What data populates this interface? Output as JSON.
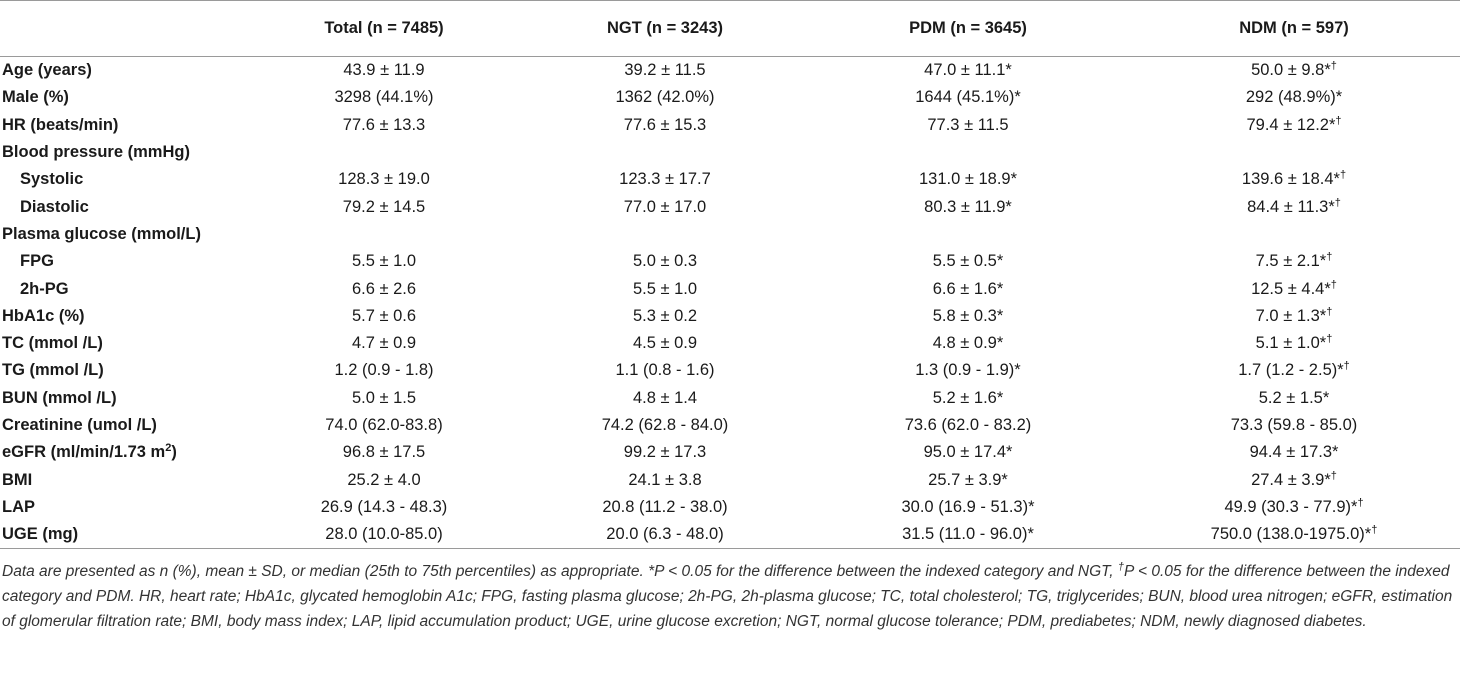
{
  "table": {
    "headers": [
      "",
      "Total (n = 7485)",
      "NGT (n = 3243)",
      "PDM (n = 3645)",
      "NDM (n = 597)"
    ],
    "rows": [
      {
        "label": "Age (years)",
        "sub": false,
        "cells": [
          {
            "text": "43.9 ± 11.9",
            "sup": ""
          },
          {
            "text": "39.2 ± 11.5",
            "sup": ""
          },
          {
            "text": "47.0 ± 11.1*",
            "sup": ""
          },
          {
            "text": "50.0 ± 9.8*",
            "sup": "†"
          }
        ]
      },
      {
        "label": "Male (%)",
        "sub": false,
        "cells": [
          {
            "text": "3298 (44.1%)",
            "sup": ""
          },
          {
            "text": "1362 (42.0%)",
            "sup": ""
          },
          {
            "text": "1644 (45.1%)*",
            "sup": ""
          },
          {
            "text": "292 (48.9%)*",
            "sup": ""
          }
        ]
      },
      {
        "label": "HR (beats/min)",
        "sub": false,
        "cells": [
          {
            "text": "77.6 ± 13.3",
            "sup": ""
          },
          {
            "text": "77.6 ± 15.3",
            "sup": ""
          },
          {
            "text": "77.3 ± 11.5",
            "sup": ""
          },
          {
            "text": "79.4 ± 12.2*",
            "sup": "†"
          }
        ]
      },
      {
        "label": "Blood pressure (mmHg)",
        "sub": false,
        "cells": [
          {
            "text": "",
            "sup": ""
          },
          {
            "text": "",
            "sup": ""
          },
          {
            "text": "",
            "sup": ""
          },
          {
            "text": "",
            "sup": ""
          }
        ]
      },
      {
        "label": "Systolic",
        "sub": true,
        "cells": [
          {
            "text": "128.3 ± 19.0",
            "sup": ""
          },
          {
            "text": "123.3 ± 17.7",
            "sup": ""
          },
          {
            "text": "131.0 ± 18.9*",
            "sup": ""
          },
          {
            "text": "139.6 ± 18.4*",
            "sup": "†"
          }
        ]
      },
      {
        "label": "Diastolic",
        "sub": true,
        "cells": [
          {
            "text": "79.2 ± 14.5",
            "sup": ""
          },
          {
            "text": "77.0 ± 17.0",
            "sup": ""
          },
          {
            "text": "80.3 ± 11.9*",
            "sup": ""
          },
          {
            "text": "84.4 ± 11.3*",
            "sup": "†"
          }
        ]
      },
      {
        "label": "Plasma glucose (mmol/L)",
        "sub": false,
        "cells": [
          {
            "text": "",
            "sup": ""
          },
          {
            "text": "",
            "sup": ""
          },
          {
            "text": "",
            "sup": ""
          },
          {
            "text": "",
            "sup": ""
          }
        ]
      },
      {
        "label": "FPG",
        "sub": true,
        "cells": [
          {
            "text": "5.5 ± 1.0",
            "sup": ""
          },
          {
            "text": "5.0 ± 0.3",
            "sup": ""
          },
          {
            "text": "5.5 ± 0.5*",
            "sup": ""
          },
          {
            "text": "7.5 ± 2.1*",
            "sup": "†"
          }
        ]
      },
      {
        "label": "2h-PG",
        "sub": true,
        "cells": [
          {
            "text": "6.6 ± 2.6",
            "sup": ""
          },
          {
            "text": "5.5 ± 1.0",
            "sup": ""
          },
          {
            "text": "6.6 ± 1.6*",
            "sup": ""
          },
          {
            "text": "12.5 ± 4.4*",
            "sup": "†"
          }
        ]
      },
      {
        "label": "HbA1c (%)",
        "sub": false,
        "cells": [
          {
            "text": "5.7 ± 0.6",
            "sup": ""
          },
          {
            "text": "5.3 ± 0.2",
            "sup": ""
          },
          {
            "text": "5.8 ± 0.3*",
            "sup": ""
          },
          {
            "text": "7.0 ± 1.3*",
            "sup": "†"
          }
        ]
      },
      {
        "label": "TC (mmol /L)",
        "sub": false,
        "cells": [
          {
            "text": "4.7 ± 0.9",
            "sup": ""
          },
          {
            "text": "4.5 ± 0.9",
            "sup": ""
          },
          {
            "text": "4.8 ± 0.9*",
            "sup": ""
          },
          {
            "text": "5.1 ± 1.0*",
            "sup": "†"
          }
        ]
      },
      {
        "label": "TG (mmol /L)",
        "sub": false,
        "cells": [
          {
            "text": "1.2 (0.9 - 1.8)",
            "sup": ""
          },
          {
            "text": "1.1 (0.8 - 1.6)",
            "sup": ""
          },
          {
            "text": "1.3 (0.9 - 1.9)*",
            "sup": ""
          },
          {
            "text": "1.7 (1.2 - 2.5)*",
            "sup": "†"
          }
        ]
      },
      {
        "label": "BUN (mmol /L)",
        "sub": false,
        "cells": [
          {
            "text": "5.0 ± 1.5",
            "sup": ""
          },
          {
            "text": "4.8 ± 1.4",
            "sup": ""
          },
          {
            "text": "5.2 ± 1.6*",
            "sup": ""
          },
          {
            "text": "5.2 ± 1.5*",
            "sup": ""
          }
        ]
      },
      {
        "label": "Creatinine (umol /L)",
        "sub": false,
        "cells": [
          {
            "text": "74.0 (62.0-83.8)",
            "sup": ""
          },
          {
            "text": "74.2 (62.8 - 84.0)",
            "sup": ""
          },
          {
            "text": "73.6 (62.0 - 83.2)",
            "sup": ""
          },
          {
            "text": "73.3 (59.8 - 85.0)",
            "sup": ""
          }
        ]
      },
      {
        "label": "eGFR (ml/min/1.73 m",
        "label_sup": "2",
        "label_after": ")",
        "sub": false,
        "cells": [
          {
            "text": "96.8 ± 17.5",
            "sup": ""
          },
          {
            "text": "99.2 ± 17.3",
            "sup": ""
          },
          {
            "text": "95.0 ± 17.4*",
            "sup": ""
          },
          {
            "text": "94.4 ± 17.3*",
            "sup": ""
          }
        ]
      },
      {
        "label": "BMI",
        "sub": false,
        "cells": [
          {
            "text": "25.2 ± 4.0",
            "sup": ""
          },
          {
            "text": "24.1 ± 3.8",
            "sup": ""
          },
          {
            "text": "25.7 ± 3.9*",
            "sup": ""
          },
          {
            "text": "27.4 ± 3.9*",
            "sup": "†"
          }
        ]
      },
      {
        "label": "LAP",
        "sub": false,
        "cells": [
          {
            "text": "26.9 (14.3 - 48.3)",
            "sup": ""
          },
          {
            "text": "20.8 (11.2 - 38.0)",
            "sup": ""
          },
          {
            "text": "30.0 (16.9 - 51.3)*",
            "sup": ""
          },
          {
            "text": "49.9 (30.3 - 77.9)*",
            "sup": "†"
          }
        ]
      },
      {
        "label": "UGE (mg)",
        "sub": false,
        "cells": [
          {
            "text": "28.0 (10.0-85.0)",
            "sup": ""
          },
          {
            "text": "20.0 (6.3 - 48.0)",
            "sup": ""
          },
          {
            "text": "31.5 (11.0 - 96.0)*",
            "sup": ""
          },
          {
            "text": "750.0 (138.0-1975.0)*",
            "sup": "†"
          }
        ]
      }
    ]
  },
  "footnote": {
    "part1": "Data are presented as n (%), mean ± SD, or median (25th to 75th percentiles) as appropriate. *P < 0.05 for the difference between the indexed category and NGT, ",
    "dagger": "†",
    "part2": "P < 0.05 for the difference between the indexed category and PDM. HR, heart rate; HbA1c, glycated hemoglobin A1c; FPG, fasting plasma glucose; 2h-PG, 2h-plasma glucose; TC, total cholesterol; TG, triglycerides; BUN, blood urea nitrogen; eGFR, estimation of glomerular filtration rate; BMI, body mass index; LAP, lipid accumulation product; UGE, urine glucose excretion; NGT, normal glucose tolerance; PDM, prediabetes; NDM, newly diagnosed diabetes."
  }
}
